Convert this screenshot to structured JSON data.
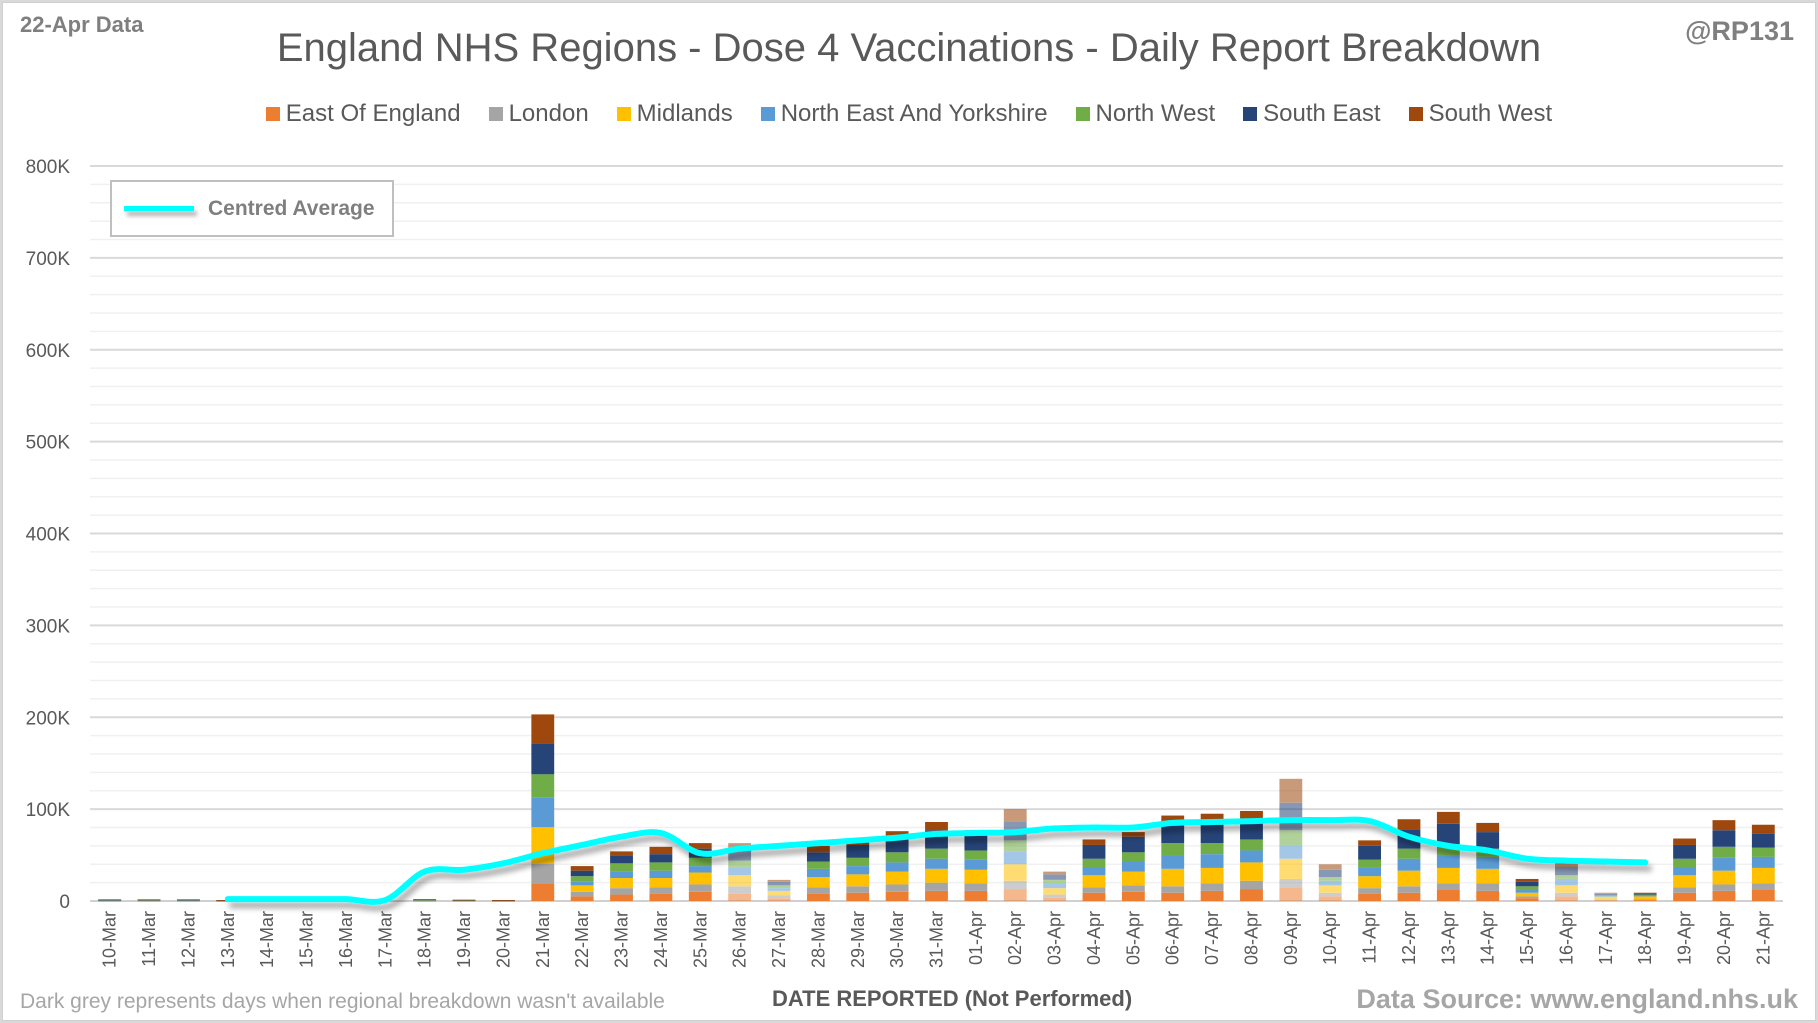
{
  "header": {
    "data_date": "22-Apr Data",
    "handle": "@RP131"
  },
  "footer": {
    "note": "Dark grey represents days when regional breakdown wasn't available",
    "xaxis_title": "DATE REPORTED (Not Performed)",
    "source": "Data Source: www.england.nhs.uk"
  },
  "chart_data": {
    "type": "bar",
    "stacked": true,
    "title": "England NHS Regions - Dose 4 Vaccinations - Daily Report Breakdown",
    "xlabel": "DATE REPORTED (Not Performed)",
    "ylabel": "",
    "ylim": [
      0,
      800000
    ],
    "yticks": [
      0,
      100000,
      200000,
      300000,
      400000,
      500000,
      600000,
      700000,
      800000
    ],
    "ytick_labels": [
      "0",
      "100K",
      "200K",
      "300K",
      "400K",
      "500K",
      "600K",
      "700K",
      "800K"
    ],
    "grid": true,
    "legend_position": "top",
    "categories": [
      "10-Mar",
      "11-Mar",
      "12-Mar",
      "13-Mar",
      "14-Mar",
      "15-Mar",
      "16-Mar",
      "17-Mar",
      "18-Mar",
      "19-Mar",
      "20-Mar",
      "21-Mar",
      "22-Mar",
      "23-Mar",
      "24-Mar",
      "25-Mar",
      "26-Mar",
      "27-Mar",
      "28-Mar",
      "29-Mar",
      "30-Mar",
      "31-Mar",
      "01-Apr",
      "02-Apr",
      "03-Apr",
      "04-Apr",
      "05-Apr",
      "06-Apr",
      "07-Apr",
      "08-Apr",
      "09-Apr",
      "10-Apr",
      "11-Apr",
      "12-Apr",
      "13-Apr",
      "14-Apr",
      "15-Apr",
      "16-Apr",
      "17-Apr",
      "18-Apr",
      "19-Apr",
      "20-Apr",
      "21-Apr"
    ],
    "faded_categories": [
      "26-Mar",
      "27-Mar",
      "02-Apr",
      "03-Apr",
      "09-Apr",
      "10-Apr",
      "16-Apr",
      "17-Apr"
    ],
    "series": [
      {
        "name": "East Of England",
        "color": "#ed7d31",
        "values": [
          300,
          300,
          300,
          200,
          0,
          0,
          0,
          0,
          300,
          200,
          200,
          18500,
          5000,
          7000,
          8000,
          10000,
          8000,
          3000,
          8000,
          9000,
          10000,
          11000,
          11000,
          13000,
          4000,
          9000,
          10000,
          9000,
          11000,
          13000,
          15000,
          5000,
          8000,
          9000,
          12000,
          11000,
          3000,
          5000,
          1000,
          1000,
          9000,
          11000,
          12000
        ]
      },
      {
        "name": "London",
        "color": "#a5a5a5",
        "values": [
          200,
          200,
          200,
          100,
          0,
          0,
          0,
          0,
          200,
          200,
          100,
          21800,
          5000,
          7000,
          7000,
          8000,
          8000,
          3000,
          7000,
          7000,
          8000,
          9000,
          8000,
          9000,
          3000,
          6000,
          7000,
          7000,
          8000,
          9000,
          9000,
          4000,
          6000,
          7000,
          7000,
          8000,
          2000,
          4000,
          1000,
          1000,
          6000,
          7000,
          7000
        ]
      },
      {
        "name": "Midlands",
        "color": "#ffc000",
        "values": [
          300,
          300,
          300,
          200,
          0,
          0,
          0,
          0,
          300,
          200,
          200,
          40000,
          7000,
          11000,
          10000,
          13000,
          12000,
          5000,
          11000,
          13000,
          14000,
          15000,
          15000,
          18000,
          7000,
          13000,
          15000,
          19000,
          17000,
          20000,
          22000,
          8000,
          13000,
          17000,
          17000,
          16000,
          4000,
          8000,
          2000,
          3000,
          13000,
          15000,
          17000
        ]
      },
      {
        "name": "North East And Yorkshire",
        "color": "#5b9bd5",
        "values": [
          200,
          300,
          200,
          100,
          0,
          0,
          0,
          0,
          300,
          200,
          100,
          32600,
          4000,
          7000,
          8000,
          7000,
          8000,
          3000,
          9000,
          9000,
          10000,
          11000,
          11000,
          14000,
          5000,
          9000,
          11000,
          14000,
          15000,
          13000,
          14000,
          5000,
          9000,
          13000,
          14000,
          13000,
          3000,
          7000,
          1000,
          1000,
          9000,
          14000,
          12000
        ]
      },
      {
        "name": "North West",
        "color": "#70ad47",
        "values": [
          300,
          200,
          300,
          100,
          0,
          0,
          0,
          0,
          300,
          200,
          100,
          25000,
          6000,
          9000,
          9000,
          9000,
          8000,
          3000,
          8000,
          9000,
          11000,
          11000,
          10000,
          12000,
          4000,
          9000,
          10000,
          14000,
          12000,
          12000,
          17000,
          4000,
          9000,
          11000,
          12000,
          9000,
          4000,
          4000,
          1000,
          1000,
          9000,
          12000,
          10000
        ]
      },
      {
        "name": "South East",
        "color": "#264478",
        "values": [
          200,
          200,
          200,
          100,
          0,
          0,
          0,
          0,
          300,
          200,
          100,
          33700,
          6000,
          8000,
          9000,
          10000,
          12000,
          4000,
          10000,
          14000,
          16000,
          20000,
          16000,
          20000,
          6000,
          15000,
          17000,
          19000,
          20000,
          18000,
          30000,
          8000,
          15000,
          21000,
          22000,
          18000,
          5000,
          9000,
          2000,
          1000,
          15000,
          18000,
          15000
        ]
      },
      {
        "name": "South West",
        "color": "#9e480e",
        "values": [
          300,
          300,
          300,
          200,
          0,
          0,
          0,
          0,
          300,
          200,
          200,
          31500,
          5000,
          5000,
          8000,
          6000,
          7000,
          2000,
          7000,
          5000,
          7000,
          9000,
          6000,
          14000,
          3000,
          6000,
          5000,
          11000,
          12000,
          13000,
          26000,
          6000,
          6000,
          11000,
          13000,
          10000,
          3000,
          5000,
          1000,
          1000,
          7000,
          11000,
          10000
        ]
      }
    ],
    "line_series": {
      "name": "Centred Average",
      "color": "#00ffff",
      "start_category": "13-Mar",
      "end_category": "18-Apr",
      "values": [
        2000,
        2000,
        2000,
        2000,
        1000,
        32000,
        34000,
        41000,
        52000,
        61000,
        70000,
        74000,
        52000,
        57000,
        60000,
        63000,
        66000,
        69000,
        73000,
        74000,
        75000,
        79000,
        80000,
        80000,
        85000,
        86000,
        87000,
        88000,
        88000,
        87000,
        70000,
        60000,
        55000,
        46000,
        44000,
        43000,
        42000
      ]
    }
  }
}
